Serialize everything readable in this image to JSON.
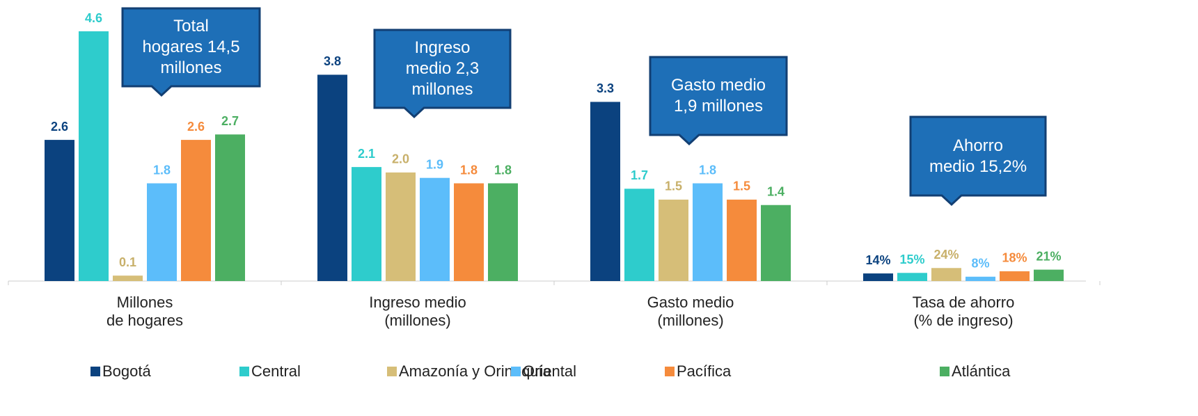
{
  "chart_data": {
    "type": "bar",
    "categories": [
      "Millones\nde hogares",
      "Ingreso medio\n(millones)",
      "Gasto medio\n(millones)",
      "Tasa de ahorro\n(% de ingreso)"
    ],
    "series": [
      {
        "name": "Bogotá",
        "color": "#0b427f",
        "values": [
          2.6,
          3.8,
          3.3,
          0.14
        ],
        "value_labels": [
          "2.6",
          "3.8",
          "3.3",
          "14%"
        ]
      },
      {
        "name": "Central",
        "color": "#2ecccc",
        "values": [
          4.6,
          2.1,
          1.7,
          0.15
        ],
        "value_labels": [
          "4.6",
          "2.1",
          "1.7",
          "15%"
        ]
      },
      {
        "name": "Amazonía y Orinoquía",
        "color": "#d6be78",
        "values": [
          0.1,
          2.0,
          1.5,
          0.24
        ],
        "value_labels": [
          "0.1",
          "2.0",
          "1.5",
          "24%"
        ]
      },
      {
        "name": "Oriental",
        "color": "#5cbdfa",
        "values": [
          1.8,
          1.9,
          1.8,
          0.08
        ],
        "value_labels": [
          "1.8",
          "1.9",
          "1.8",
          "8%"
        ]
      },
      {
        "name": "Pacífica",
        "color": "#f58b3c",
        "values": [
          2.6,
          1.8,
          1.5,
          0.18
        ],
        "value_labels": [
          "2.6",
          "1.8",
          "1.5",
          "18%"
        ]
      },
      {
        "name": "Atlántica",
        "color": "#4caf62",
        "values": [
          2.7,
          1.8,
          1.4,
          0.21
        ],
        "value_labels": [
          "2.7",
          "1.8",
          "1.4",
          "21%"
        ]
      }
    ],
    "annotations": [
      "Total\nhogares 14,5\nmillones",
      "Ingreso\nmedio 2,3\nmillones",
      "Gasto medio\n1,9 millones",
      "Ahorro\nmedio 15,2%"
    ],
    "ylim": [
      0,
      4.6
    ]
  }
}
